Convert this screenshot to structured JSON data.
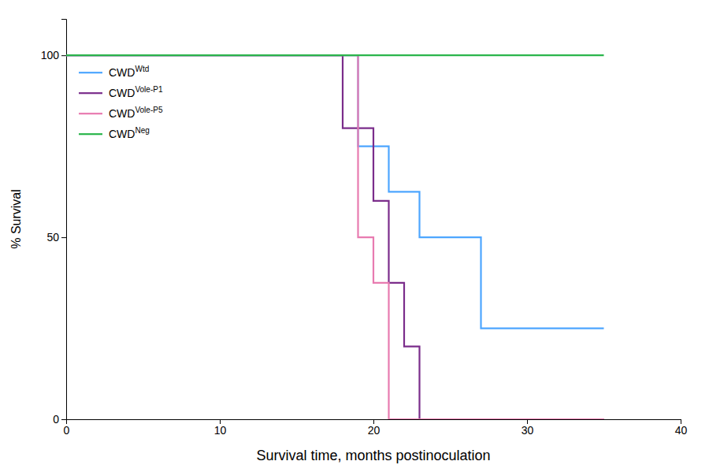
{
  "chart_data": {
    "type": "line",
    "x_label": "Survival time, months postinoculation",
    "y_label": "% Survival",
    "xlim": [
      0,
      40
    ],
    "ylim": [
      0,
      110
    ],
    "xticks": [
      0,
      10,
      20,
      30,
      40
    ],
    "yticks": [
      0,
      50,
      100
    ],
    "grid": false,
    "legend": "upper left",
    "series": [
      {
        "name": "CWDWtd",
        "color": "#4da6ff",
        "x": [
          0,
          19,
          19,
          21,
          21,
          23,
          23,
          27,
          27,
          32,
          32,
          35
        ],
        "values": [
          100,
          100,
          75,
          75,
          62.5,
          62.5,
          50,
          50,
          25,
          25,
          25,
          25
        ]
      },
      {
        "name": "CWDVole-P1",
        "color": "#7b2d8b",
        "x": [
          0,
          18,
          18,
          20,
          20,
          21,
          21,
          22,
          22,
          23,
          23,
          35
        ],
        "values": [
          100,
          100,
          80,
          80,
          60,
          60,
          37.5,
          37.5,
          20,
          20,
          0,
          0
        ]
      },
      {
        "name": "CWDVole-P5",
        "color": "#e87bb0",
        "x": [
          0,
          13,
          13,
          19,
          19,
          20,
          20,
          21,
          21,
          35
        ],
        "values": [
          100,
          100,
          100,
          100,
          50,
          50,
          37.5,
          37.5,
          0,
          0
        ]
      },
      {
        "name": "CWDNeg",
        "color": "#2ab54b",
        "x": [
          0,
          34,
          34,
          35
        ],
        "values": [
          100,
          100,
          100,
          100
        ]
      }
    ]
  }
}
